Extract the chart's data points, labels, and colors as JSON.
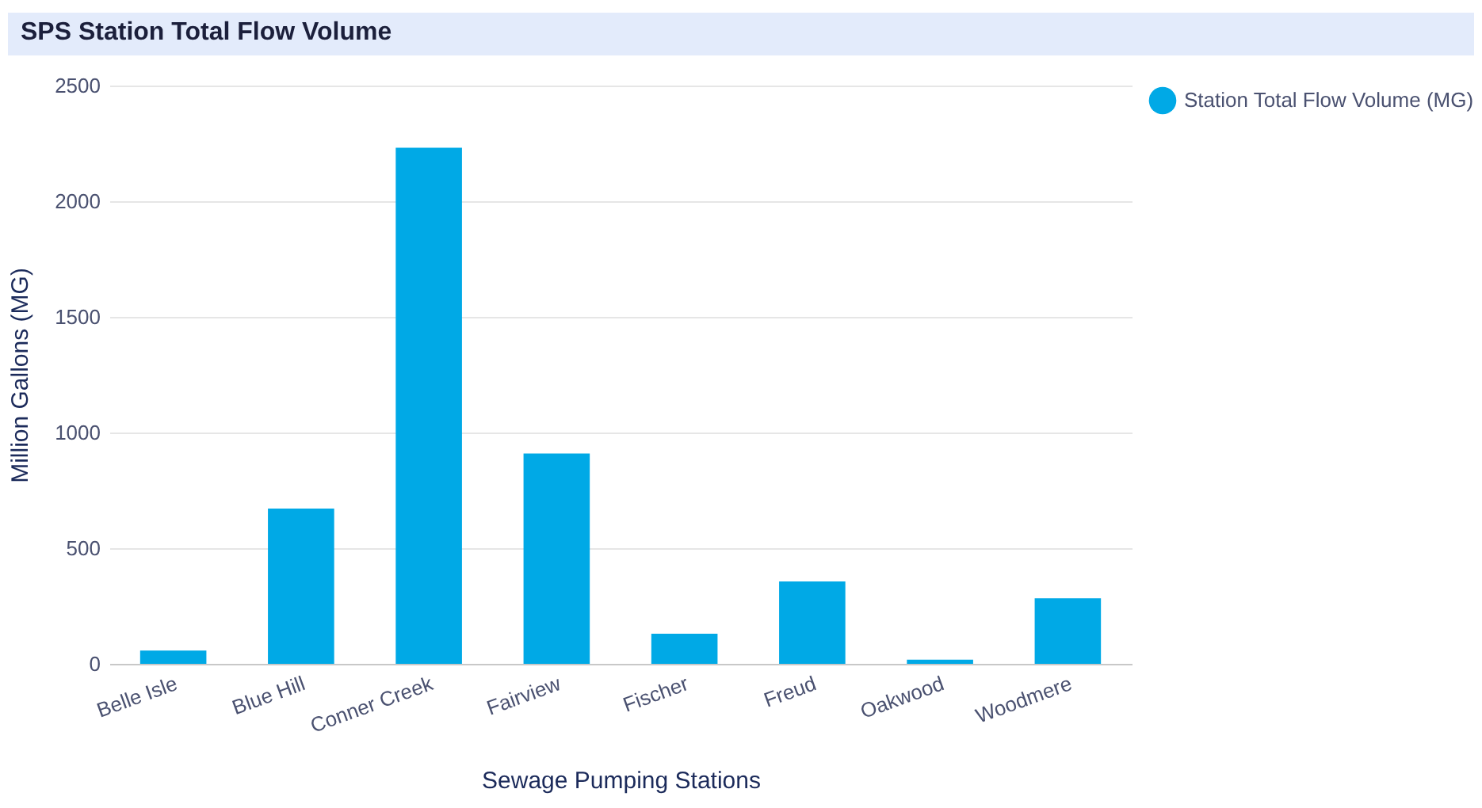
{
  "chart_data": {
    "type": "bar",
    "title": "SPS Station Total Flow Volume",
    "xlabel": "Sewage Pumping Stations",
    "ylabel": "Million Gallons (MG)",
    "categories": [
      "Belle Isle",
      "Blue Hill",
      "Conner Creek",
      "Fairview",
      "Fischer",
      "Freud",
      "Oakwood",
      "Woodmere"
    ],
    "series": [
      {
        "name": "Station Total Flow Volume (MG)",
        "color": "#00a9e6",
        "values": [
          57,
          671,
          2231,
          909,
          130,
          356,
          18,
          283
        ]
      }
    ],
    "ylim": [
      0,
      2500
    ],
    "yticks": [
      0,
      500,
      1000,
      1500,
      2000,
      2500
    ],
    "grid": "y",
    "legend": "top right"
  }
}
